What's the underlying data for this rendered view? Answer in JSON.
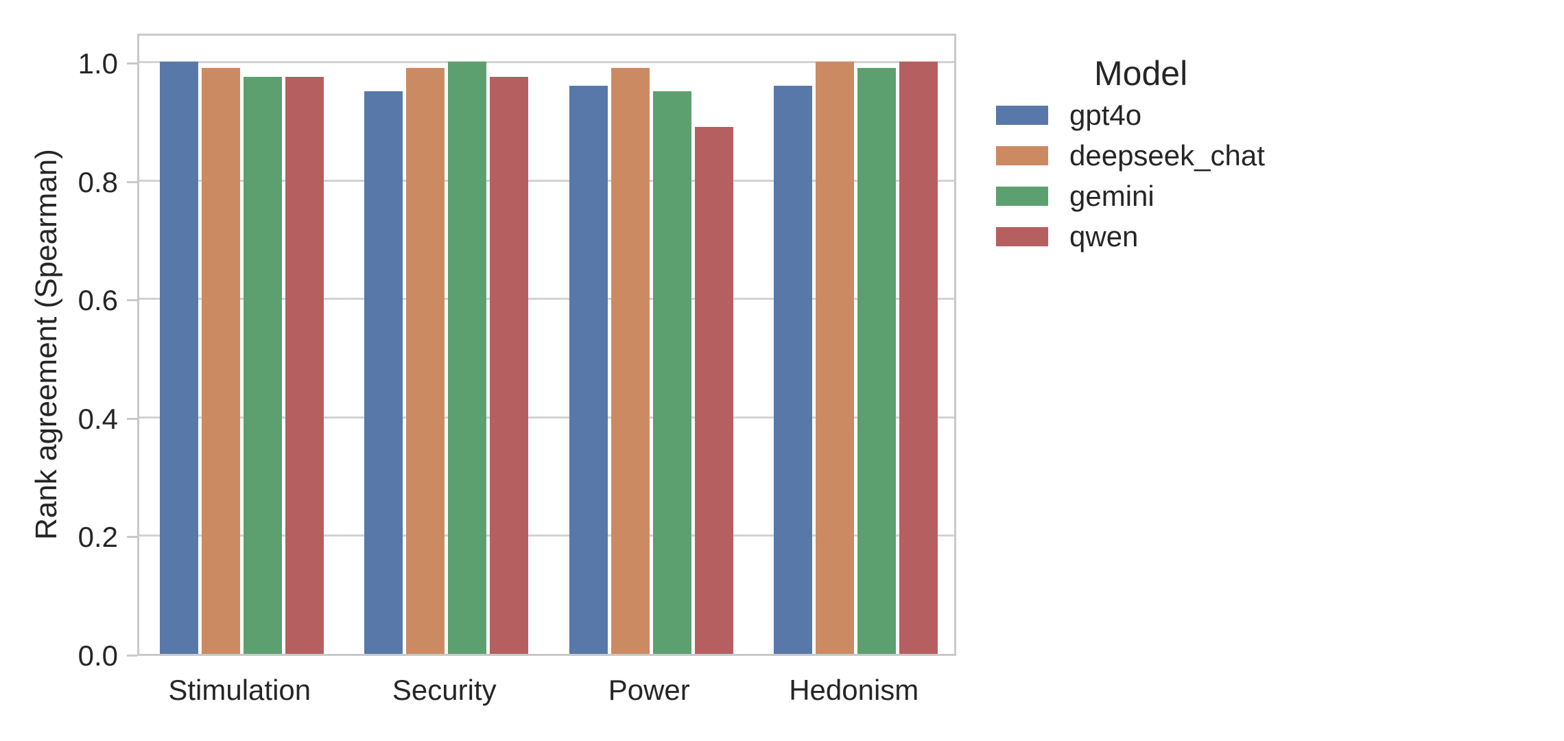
{
  "chart_data": {
    "type": "bar",
    "categories": [
      "Stimulation",
      "Security",
      "Power",
      "Hedonism"
    ],
    "series": [
      {
        "name": "gpt4o",
        "color": "#5878A9",
        "values": [
          1.0,
          0.95,
          0.96,
          0.96
        ]
      },
      {
        "name": "deepseek_chat",
        "color": "#CC8A63",
        "values": [
          0.99,
          0.99,
          0.99,
          1.0
        ]
      },
      {
        "name": "gemini",
        "color": "#5DA06F",
        "values": [
          0.975,
          1.0,
          0.95,
          0.99
        ]
      },
      {
        "name": "qwen",
        "color": "#B65F60",
        "values": [
          0.975,
          0.975,
          0.89,
          1.0
        ]
      }
    ],
    "title": "",
    "xlabel": "",
    "ylabel": "Rank agreement (Spearman)",
    "ylim": [
      0,
      1.05
    ],
    "yticks": [
      0.0,
      0.2,
      0.4,
      0.6,
      0.8,
      1.0
    ],
    "ytick_labels": [
      "0.0",
      "0.2",
      "0.4",
      "0.6",
      "0.8",
      "1.0"
    ],
    "grid": true,
    "legend_title": "Model",
    "legend_position": "outside-upper-right",
    "colors": {
      "grid": "#D2D2D2",
      "spine": "#C9C9C9",
      "text": "#262626",
      "background": "#FFFFFF"
    }
  }
}
